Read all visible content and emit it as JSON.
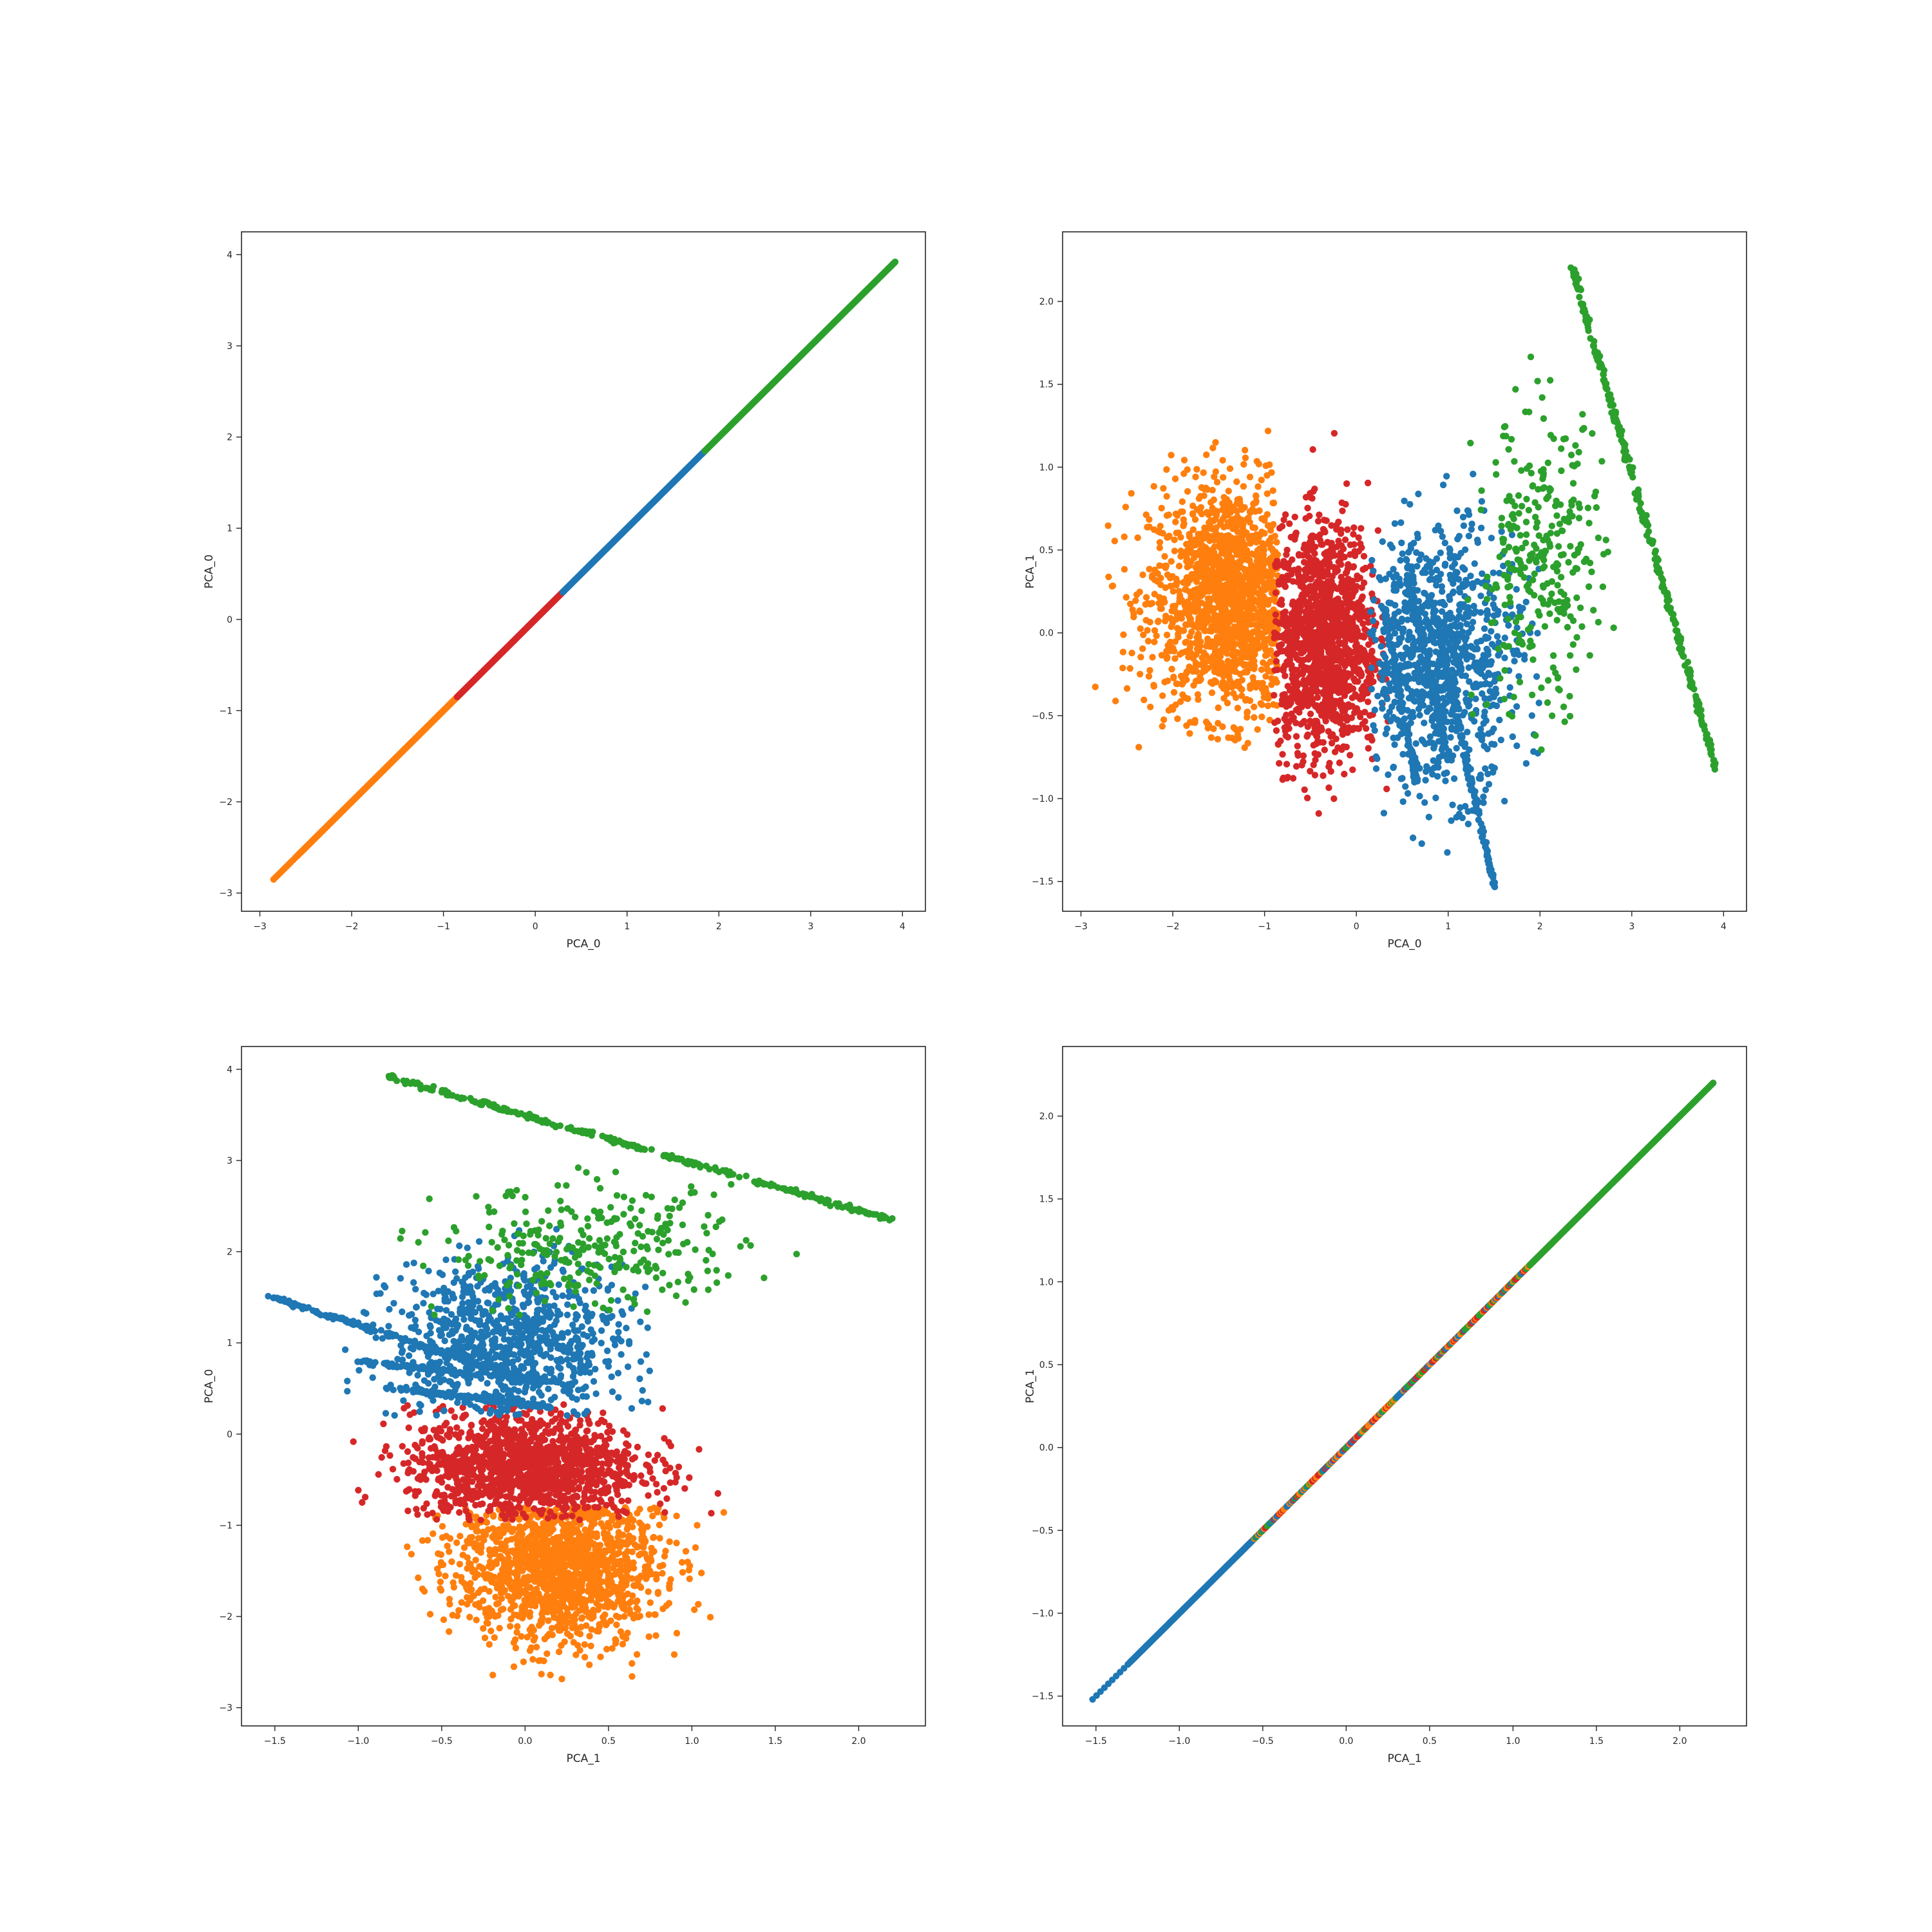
{
  "figure": {
    "layout": "2x2 pairplot",
    "background": "#ffffff",
    "cluster_colors": {
      "blue": "#1f77b4",
      "orange": "#ff7f0e",
      "green": "#2ca02c",
      "red": "#d62728"
    }
  },
  "chart_data": [
    {
      "id": "pca0-vs-pca0",
      "type": "scatter",
      "xlabel": "PCA_0",
      "ylabel": "PCA_0",
      "xlim": [
        -3.2,
        4.25
      ],
      "ylim": [
        -3.2,
        4.25
      ],
      "xticks": [
        -3,
        -2,
        -1,
        0,
        1,
        2,
        3,
        4
      ],
      "yticks": [
        -3,
        -2,
        -1,
        0,
        1,
        2,
        3,
        4
      ],
      "xtick_labels": [
        "−3",
        "−2",
        "−1",
        "0",
        "1",
        "2",
        "3",
        "4"
      ],
      "ytick_labels": [
        "−3",
        "−2",
        "−1",
        "0",
        "1",
        "2",
        "3",
        "4"
      ],
      "grid": false,
      "series": [
        {
          "color": "orange",
          "kind": "diagonal",
          "from": -2.85,
          "to": -0.85,
          "sparse_end": -2.6
        },
        {
          "color": "red",
          "kind": "diagonal",
          "from": -0.85,
          "to": 0.3
        },
        {
          "color": "blue",
          "kind": "diagonal",
          "from": 0.3,
          "to": 1.85
        },
        {
          "color": "green",
          "kind": "diagonal",
          "from": 1.85,
          "to": 3.92
        }
      ]
    },
    {
      "id": "pca0-vs-pca1",
      "type": "scatter",
      "xlabel": "PCA_0",
      "ylabel": "PCA_1",
      "xlim": [
        -3.2,
        4.25
      ],
      "ylim": [
        -1.68,
        2.42
      ],
      "xticks": [
        -3,
        -2,
        -1,
        0,
        1,
        2,
        3,
        4
      ],
      "yticks": [
        -1.5,
        -1.0,
        -0.5,
        0.0,
        0.5,
        1.0,
        1.5,
        2.0
      ],
      "xtick_labels": [
        "−3",
        "−2",
        "−1",
        "0",
        "1",
        "2",
        "3",
        "4"
      ],
      "ytick_labels": [
        "−1.5",
        "−1.0",
        "−0.5",
        "0.0",
        "0.5",
        "1.0",
        "1.5",
        "2.0"
      ],
      "grid": false,
      "series": [
        {
          "color": "orange",
          "kind": "cloud",
          "x": [
            -2.9,
            -0.85
          ],
          "y": [
            -0.7,
            1.25
          ],
          "cx": -1.35,
          "cy": 0.2,
          "sx": 0.45,
          "sy": 0.35,
          "n": 1500
        },
        {
          "color": "red",
          "kind": "cloud",
          "x": [
            -0.9,
            0.35
          ],
          "y": [
            -1.1,
            1.35
          ],
          "cx": -0.35,
          "cy": -0.05,
          "sx": 0.3,
          "sy": 0.35,
          "n": 1300
        },
        {
          "color": "blue",
          "kind": "cloud",
          "x": [
            0.15,
            2.0
          ],
          "y": [
            -1.5,
            1.05
          ],
          "cx": 0.9,
          "cy": -0.15,
          "sx": 0.45,
          "sy": 0.4,
          "n": 900
        },
        {
          "color": "blue",
          "kind": "line",
          "from": [
            0.3,
            0.15
          ],
          "to": [
            0.65,
            -0.9
          ],
          "n": 120
        },
        {
          "color": "blue",
          "kind": "line",
          "from": [
            0.55,
            0.35
          ],
          "to": [
            1.0,
            -0.75
          ],
          "n": 120
        },
        {
          "color": "blue",
          "kind": "line",
          "from": [
            0.8,
            0.25
          ],
          "to": [
            1.5,
            -1.52
          ],
          "n": 200
        },
        {
          "color": "green",
          "kind": "cloud",
          "x": [
            1.2,
            2.85
          ],
          "y": [
            -0.75,
            1.8
          ],
          "cx": 2.0,
          "cy": 0.4,
          "sx": 0.35,
          "sy": 0.45,
          "n": 300
        },
        {
          "color": "green",
          "kind": "line",
          "from": [
            2.35,
            2.2
          ],
          "to": [
            3.92,
            -0.82
          ],
          "n": 300
        }
      ]
    },
    {
      "id": "pca1-vs-pca0",
      "type": "scatter",
      "xlabel": "PCA_1",
      "ylabel": "PCA_0",
      "xlim": [
        -1.7,
        2.4
      ],
      "ylim": [
        -3.2,
        4.25
      ],
      "xticks": [
        -1.5,
        -1.0,
        -0.5,
        0.0,
        0.5,
        1.0,
        1.5,
        2.0
      ],
      "yticks": [
        -3,
        -2,
        -1,
        0,
        1,
        2,
        3,
        4
      ],
      "xtick_labels": [
        "−1.5",
        "−1.0",
        "−0.5",
        "0.0",
        "0.5",
        "1.0",
        "1.5",
        "2.0"
      ],
      "ytick_labels": [
        "−3",
        "−2",
        "−1",
        "0",
        "1",
        "2",
        "3",
        "4"
      ],
      "grid": false,
      "series": [
        {
          "color": "orange",
          "kind": "cloud",
          "x": [
            -0.75,
            1.25
          ],
          "y": [
            -2.85,
            -0.8
          ],
          "cx": 0.2,
          "cy": -1.4,
          "sx": 0.3,
          "sy": 0.45,
          "n": 1500
        },
        {
          "color": "red",
          "kind": "cloud",
          "x": [
            -1.1,
            1.3
          ],
          "y": [
            -0.95,
            0.35
          ],
          "cx": 0.0,
          "cy": -0.35,
          "sx": 0.35,
          "sy": 0.3,
          "n": 1300
        },
        {
          "color": "blue",
          "kind": "cloud",
          "x": [
            -1.2,
            0.75
          ],
          "y": [
            0.2,
            2.6
          ],
          "cx": -0.1,
          "cy": 1.0,
          "sx": 0.35,
          "sy": 0.45,
          "n": 900
        },
        {
          "color": "blue",
          "kind": "line",
          "from": [
            -1.52,
            1.5
          ],
          "to": [
            0.1,
            0.55
          ],
          "n": 200
        },
        {
          "color": "blue",
          "kind": "line",
          "from": [
            -1.0,
            0.8
          ],
          "to": [
            0.3,
            0.55
          ],
          "n": 120
        },
        {
          "color": "blue",
          "kind": "line",
          "from": [
            -0.8,
            0.5
          ],
          "to": [
            0.15,
            0.3
          ],
          "n": 120
        },
        {
          "color": "green",
          "kind": "cloud",
          "x": [
            -0.75,
            1.8
          ],
          "y": [
            1.3,
            2.95
          ],
          "cx": 0.4,
          "cy": 2.0,
          "sx": 0.45,
          "sy": 0.35,
          "n": 300
        },
        {
          "color": "green",
          "kind": "line",
          "from": [
            -0.82,
            3.92
          ],
          "to": [
            2.2,
            2.35
          ],
          "n": 300
        }
      ]
    },
    {
      "id": "pca1-vs-pca1",
      "type": "scatter",
      "xlabel": "PCA_1",
      "ylabel": "PCA_1",
      "xlim": [
        -1.7,
        2.4
      ],
      "ylim": [
        -1.68,
        2.42
      ],
      "xticks": [
        -1.5,
        -1.0,
        -0.5,
        0.0,
        0.5,
        1.0,
        1.5,
        2.0
      ],
      "yticks": [
        -1.5,
        -1.0,
        -0.5,
        0.0,
        0.5,
        1.0,
        1.5,
        2.0
      ],
      "xtick_labels": [
        "−1.5",
        "−1.0",
        "−0.5",
        "0.0",
        "0.5",
        "1.0",
        "1.5",
        "2.0"
      ],
      "ytick_labels": [
        "−1.5",
        "−1.0",
        "−0.5",
        "0.0",
        "0.5",
        "1.0",
        "1.5",
        "2.0"
      ],
      "grid": false,
      "series": [
        {
          "color": "blue",
          "kind": "diagonal",
          "from": -1.52,
          "to": -0.55,
          "sparse_end": -1.3
        },
        {
          "color": "mixed",
          "kind": "diagonal",
          "from": -0.55,
          "to": 1.25
        },
        {
          "color": "green",
          "kind": "diagonal",
          "from": 1.1,
          "to": 2.2
        }
      ]
    }
  ]
}
